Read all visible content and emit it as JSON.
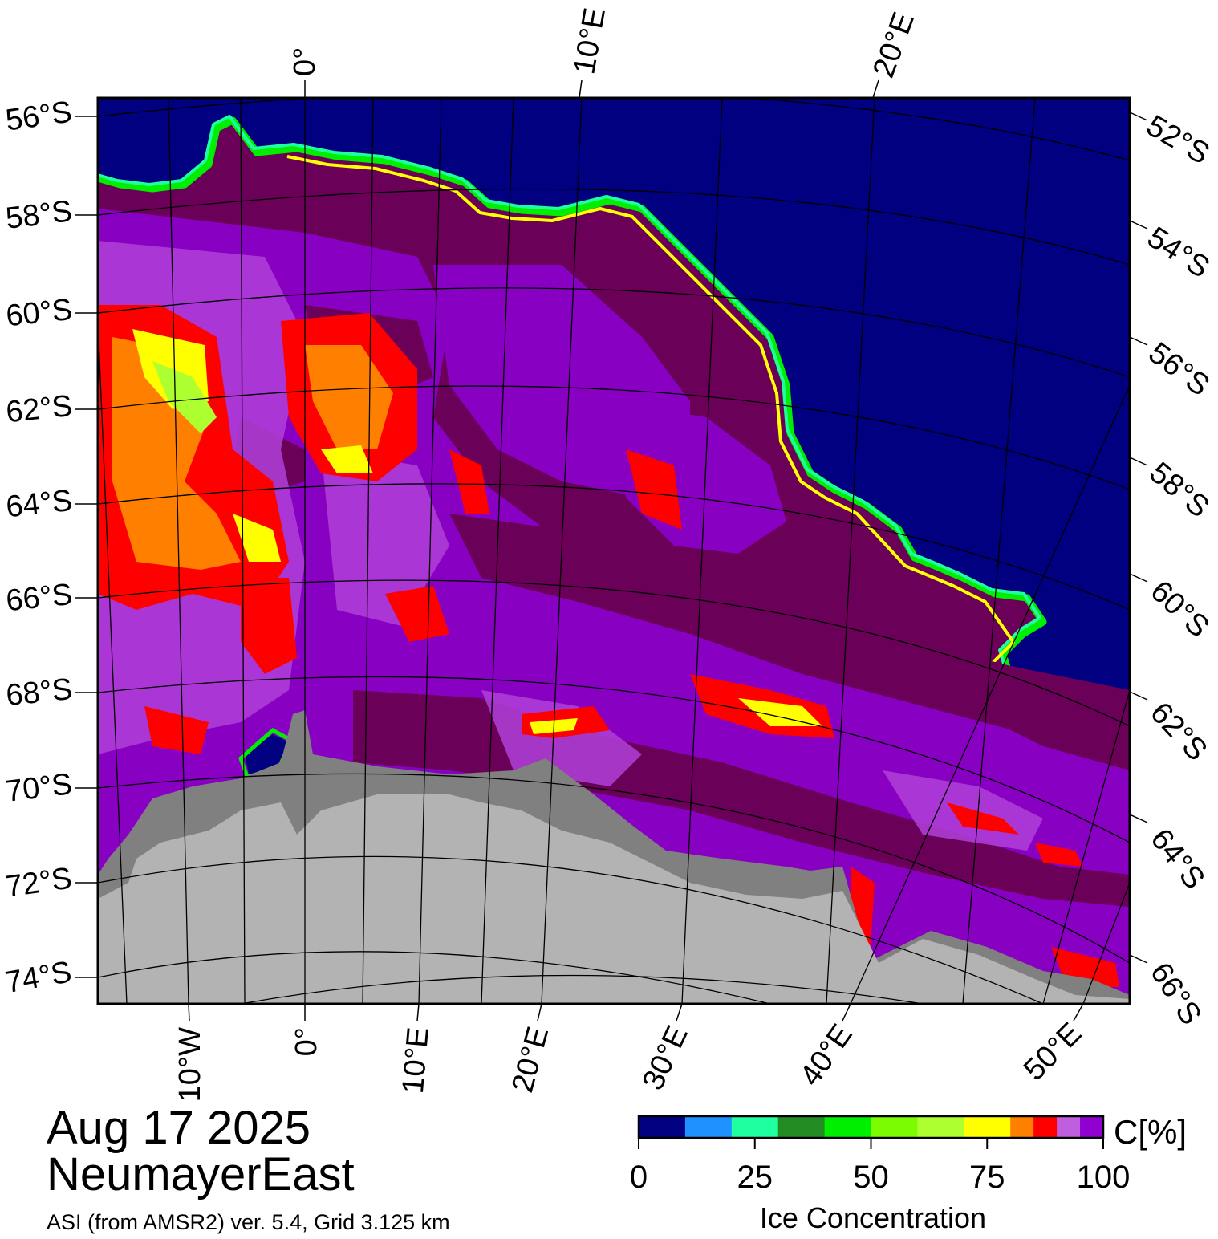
{
  "title": {
    "date": "Aug 17 2025",
    "region": "NeumayerEast",
    "subtitle": "ASI (from AMSR2) ver. 5.4,  Grid 3.125 km"
  },
  "graticule": {
    "lat_left": [
      "56°S",
      "58°S",
      "60°S",
      "62°S",
      "64°S",
      "66°S",
      "68°S",
      "70°S",
      "72°S",
      "74°S"
    ],
    "lat_right": [
      "52°S",
      "54°S",
      "56°S",
      "58°S",
      "60°S",
      "62°S",
      "64°S",
      "66°S"
    ],
    "lon_top": [
      "0°",
      "10°E",
      "20°E"
    ],
    "lon_bottom": [
      "10°W",
      "0°",
      "10°E",
      "20°E",
      "30°E",
      "40°E",
      "50°E"
    ]
  },
  "colorbar": {
    "unit": "C[%]",
    "label": "Ice Concentration",
    "ticks": [
      "0",
      "25",
      "50",
      "75",
      "100"
    ],
    "colors": [
      "#000080",
      "#1e90ff",
      "#1effa0",
      "#228b22",
      "#00ee00",
      "#7cfc00",
      "#adff2f",
      "#ffff00",
      "#ff8000",
      "#ff0000",
      "#bf5fdf",
      "#9000d0"
    ]
  },
  "colors": {
    "ocean": "#000080",
    "land": "#b3b3b3",
    "ice_shelf": "#808080",
    "full_ice": "#6b0058",
    "high_ice": "#8a00c8",
    "medium_ice": "#b040d8"
  }
}
